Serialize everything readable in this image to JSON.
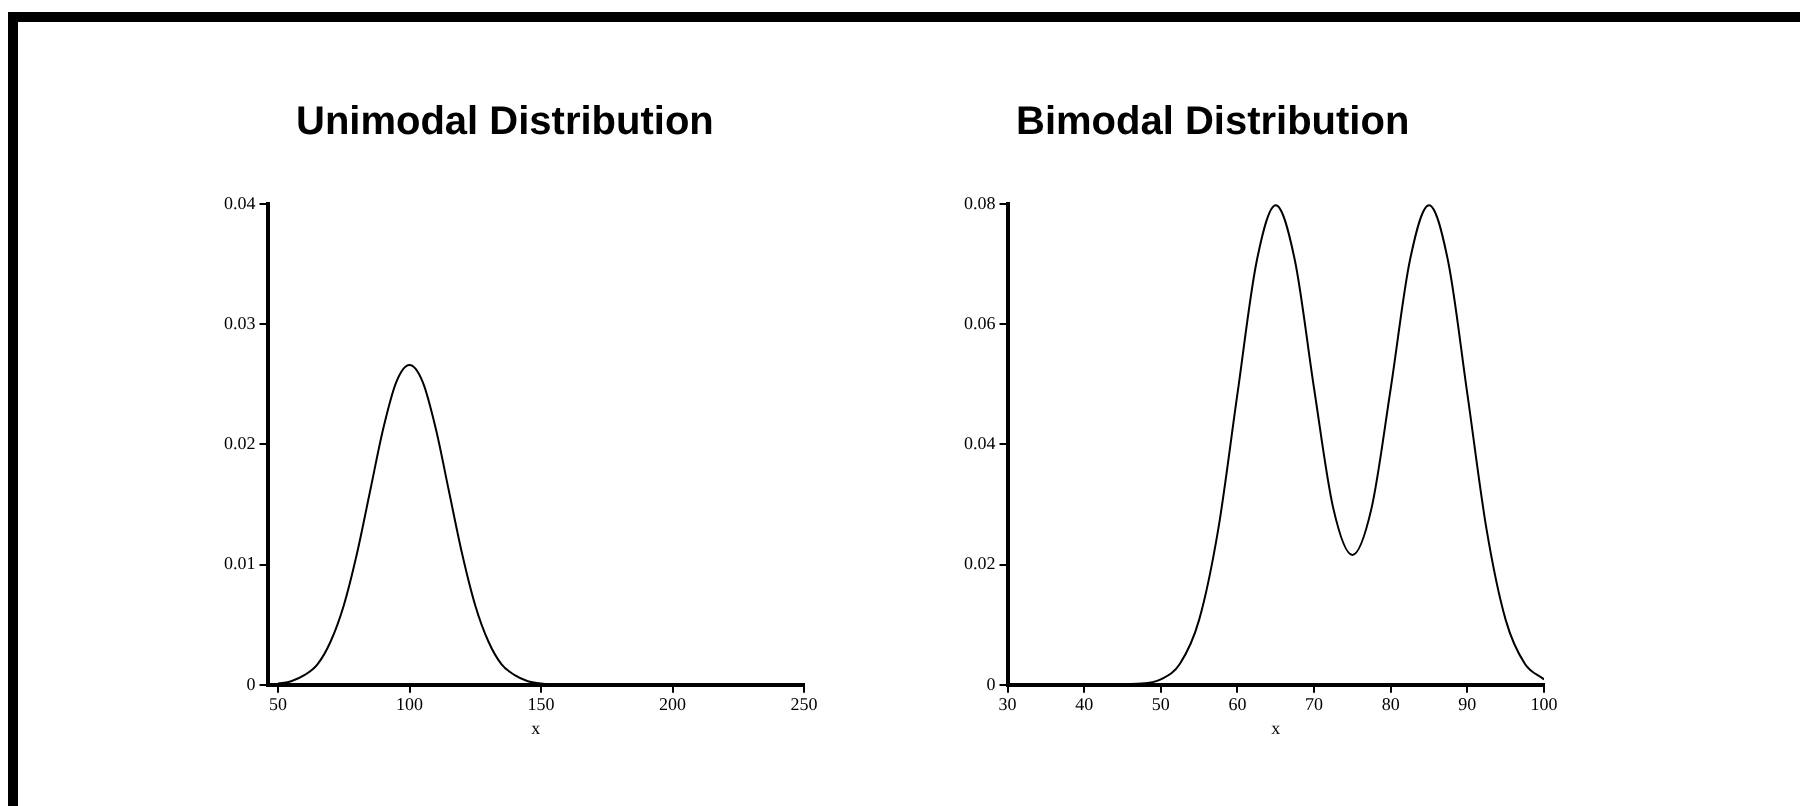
{
  "chart_data": [
    {
      "type": "line",
      "title": "Unimodal Distribution",
      "xlabel": "x",
      "x": [
        50,
        55,
        60,
        65,
        70,
        75,
        80,
        85,
        90,
        95,
        100,
        105,
        110,
        115,
        120,
        125,
        130,
        135,
        140,
        145,
        150,
        155,
        200,
        250
      ],
      "values": [
        0.0001,
        0.0003,
        0.0008,
        0.0017,
        0.0036,
        0.0066,
        0.0109,
        0.0161,
        0.0213,
        0.0252,
        0.0266,
        0.0252,
        0.0213,
        0.0161,
        0.0109,
        0.0066,
        0.0036,
        0.0017,
        0.0008,
        0.0003,
        0.0001,
        0,
        0,
        0
      ],
      "color": "#000000",
      "xlim": [
        46,
        250
      ],
      "ylim": [
        0,
        0.04
      ],
      "xticks": [
        50,
        100,
        150,
        200,
        250
      ],
      "yticks": [
        0,
        0.01,
        0.02,
        0.03,
        0.04
      ],
      "grid": false,
      "legend": false,
      "marker": "none"
    },
    {
      "type": "line",
      "title": "Bimodal Distribution",
      "xlabel": "x",
      "x": [
        30,
        40,
        47.5,
        50,
        52.5,
        55,
        57.5,
        60,
        62.5,
        65,
        67.5,
        70,
        72.5,
        75,
        77.5,
        80,
        82.5,
        85,
        87.5,
        90,
        92.5,
        95,
        97.5,
        100
      ],
      "values": [
        0,
        0,
        0.0002,
        0.0009,
        0.0035,
        0.0108,
        0.0259,
        0.0484,
        0.0704,
        0.0798,
        0.0706,
        0.0493,
        0.0294,
        0.0216,
        0.0294,
        0.0493,
        0.0706,
        0.0798,
        0.0704,
        0.0484,
        0.0259,
        0.0108,
        0.0035,
        0.0009
      ],
      "color": "#000000",
      "xlim": [
        30,
        100
      ],
      "ylim": [
        0,
        0.08
      ],
      "xticks": [
        30,
        40,
        50,
        60,
        70,
        80,
        90,
        100
      ],
      "yticks": [
        0,
        0.02,
        0.04,
        0.06,
        0.08
      ],
      "grid": false,
      "legend": false,
      "marker": "none"
    }
  ]
}
